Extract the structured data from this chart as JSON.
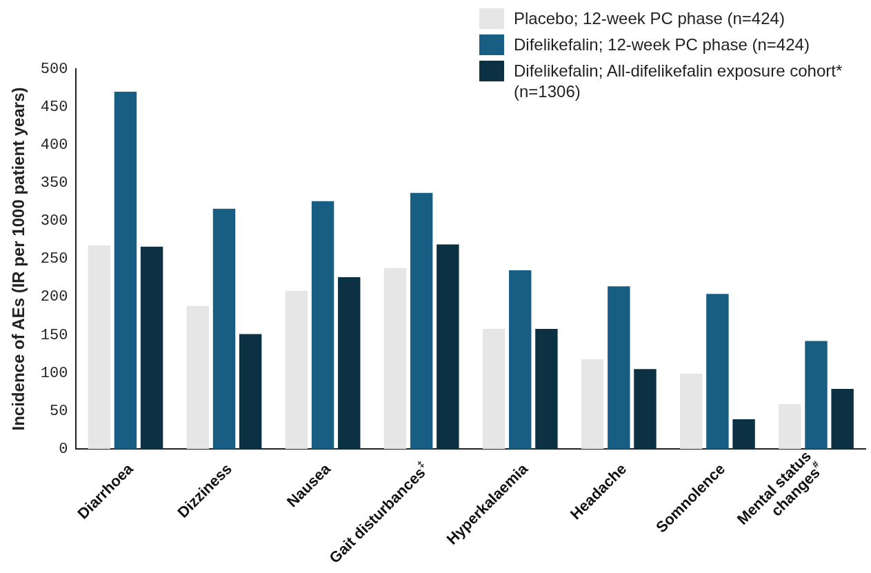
{
  "chart_data": {
    "type": "bar",
    "ylabel": "Incidence of AEs (IR per 1000 patient years)",
    "categories": [
      "Diarrhoea",
      "Dizziness",
      "Nausea",
      "Gait disturbances$^{‡}$",
      "Hyperkalaemia",
      "Headache",
      "Somnolence",
      "Mental status changes$^{#}$"
    ],
    "series": [
      {
        "name": "Placebo; 12-week PC phase (n=424)",
        "color": "#e6e6e6",
        "values": [
          268,
          188,
          208,
          238,
          158,
          118,
          99,
          59
        ]
      },
      {
        "name": "Difelikefalin; 12-week PC phase (n=424)",
        "color": "#175e82",
        "values": [
          470,
          316,
          326,
          337,
          235,
          214,
          204,
          142
        ]
      },
      {
        "name": "Difelikefalin; All-difelikefalin exposure cohort* (n=1306)",
        "color": "#0b3142",
        "values": [
          266,
          151,
          226,
          269,
          158,
          105,
          39,
          79
        ]
      }
    ],
    "ylim": [
      0,
      500
    ],
    "yticks": [
      0,
      50,
      100,
      150,
      200,
      250,
      300,
      350,
      400,
      450,
      500
    ],
    "grid": false,
    "legend": "top right"
  }
}
